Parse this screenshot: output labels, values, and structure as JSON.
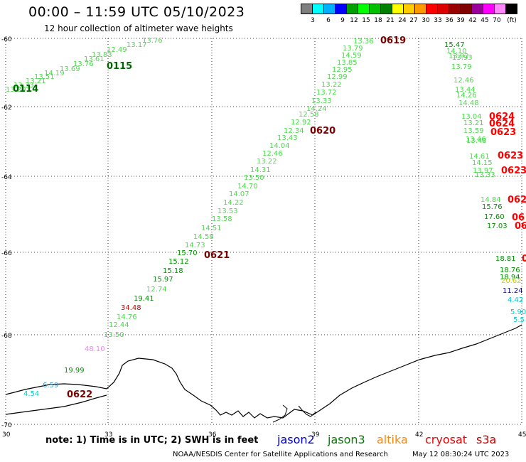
{
  "header": {
    "title": "00:00 – 11:59 UTC 05/10/2023",
    "subtitle": "12 hour collection of altimeter wave heights"
  },
  "color_scale": {
    "unit": "(ft)",
    "colors": [
      "#7f7f7f",
      "#00ffff",
      "#00b0ff",
      "#0000ff",
      "#00a000",
      "#00ff00",
      "#00c000",
      "#008000",
      "#ffff00",
      "#ffcc00",
      "#ff9900",
      "#ff0000",
      "#dd0000",
      "#990000",
      "#800000",
      "#990099",
      "#ff00ff",
      "#ff88ff",
      "#000000"
    ],
    "labels": [
      "3",
      "6",
      "9",
      "12",
      "15",
      "18",
      "21",
      "24",
      "27",
      "30",
      "33",
      "36",
      "39",
      "42",
      "45",
      "70"
    ]
  },
  "axes": {
    "lat_labels": [
      "60",
      "62",
      "64",
      "66",
      "68",
      "70"
    ],
    "lon_labels": [
      "30",
      "33",
      "36",
      "39",
      "42",
      "45"
    ]
  },
  "time_labels": [
    {
      "text": "0114",
      "color": "#006400"
    },
    {
      "text": "0115",
      "color": "#006400"
    },
    {
      "text": "0619",
      "color": "#7a0000"
    },
    {
      "text": "0620",
      "color": "#7a0000"
    },
    {
      "text": "0621",
      "color": "#7a0000"
    },
    {
      "text": "0622",
      "color": "#7a0000"
    },
    {
      "text": "0624",
      "color": "#ff0000"
    },
    {
      "text": "0624",
      "color": "#ff0000"
    },
    {
      "text": "0623",
      "color": "#ff0000"
    },
    {
      "text": "0623",
      "color": "#ff0000"
    },
    {
      "text": "0623",
      "color": "#ff0000"
    },
    {
      "text": "062",
      "color": "#ff0000"
    },
    {
      "text": "06",
      "color": "#ff0000"
    },
    {
      "text": "06",
      "color": "#ff0000"
    },
    {
      "text": "0",
      "color": "#ff0000"
    }
  ],
  "wave_heights": [
    {
      "t": "13.29",
      "c": "#4cd94c"
    },
    {
      "t": "13.33",
      "c": "#4cd94c"
    },
    {
      "t": "13.21",
      "c": "#4cd94c"
    },
    {
      "t": "13.51",
      "c": "#4cd94c"
    },
    {
      "t": "14.19",
      "c": "#4cd94c"
    },
    {
      "t": "13.69",
      "c": "#4cd94c"
    },
    {
      "t": "13.76",
      "c": "#4cd94c"
    },
    {
      "t": "13.61",
      "c": "#4cd94c"
    },
    {
      "t": "13.83",
      "c": "#4cd94c"
    },
    {
      "t": "12.49",
      "c": "#4cd94c"
    },
    {
      "t": "13.17",
      "c": "#4cd94c"
    },
    {
      "t": "13.76",
      "c": "#4cd94c"
    },
    {
      "t": "13.36",
      "c": "#4cd94c"
    },
    {
      "t": "13.79",
      "c": "#4cd94c"
    },
    {
      "t": "14.59",
      "c": "#4cd94c"
    },
    {
      "t": "13.85",
      "c": "#4cd94c"
    },
    {
      "t": "12.95",
      "c": "#4cd94c"
    },
    {
      "t": "12.99",
      "c": "#4cd94c"
    },
    {
      "t": "13.22",
      "c": "#4cd94c"
    },
    {
      "t": "13.72",
      "c": "#4cd94c"
    },
    {
      "t": "13.33",
      "c": "#4cd94c"
    },
    {
      "t": "14.24",
      "c": "#4cd94c"
    },
    {
      "t": "12.58",
      "c": "#4cd94c"
    },
    {
      "t": "12.92",
      "c": "#4cd94c"
    },
    {
      "t": "12.34",
      "c": "#4cd94c"
    },
    {
      "t": "13.43",
      "c": "#4cd94c"
    },
    {
      "t": "14.04",
      "c": "#4cd94c"
    },
    {
      "t": "12.46",
      "c": "#4cd94c"
    },
    {
      "t": "13.22",
      "c": "#4cd94c"
    },
    {
      "t": "14.31",
      "c": "#4cd94c"
    },
    {
      "t": "13.50",
      "c": "#4cd94c"
    },
    {
      "t": "14.70",
      "c": "#4cd94c"
    },
    {
      "t": "14.07",
      "c": "#4cd94c"
    },
    {
      "t": "14.22",
      "c": "#4cd94c"
    },
    {
      "t": "13.53",
      "c": "#4cd94c"
    },
    {
      "t": "13.58",
      "c": "#4cd94c"
    },
    {
      "t": "14.51",
      "c": "#4cd94c"
    },
    {
      "t": "14.58",
      "c": "#4cd94c"
    },
    {
      "t": "14.73",
      "c": "#4cd94c"
    },
    {
      "t": "15.70",
      "c": "#009000"
    },
    {
      "t": "15.12",
      "c": "#009000"
    },
    {
      "t": "15.18",
      "c": "#009000"
    },
    {
      "t": "15.97",
      "c": "#009000"
    },
    {
      "t": "12.74",
      "c": "#4cd94c"
    },
    {
      "t": "19.41",
      "c": "#009000"
    },
    {
      "t": "34.48",
      "c": "#cc0000"
    },
    {
      "t": "14.76",
      "c": "#4cd94c"
    },
    {
      "t": "12.44",
      "c": "#4cd94c"
    },
    {
      "t": "13.50",
      "c": "#4cd94c"
    },
    {
      "t": "48.10",
      "c": "#ee88ee"
    },
    {
      "t": "19.99",
      "c": "#009000"
    },
    {
      "t": "6.59",
      "c": "#4499cc"
    },
    {
      "t": "4.54",
      "c": "#00cccc"
    },
    {
      "t": "15.47",
      "c": "#009000"
    },
    {
      "t": "14.10",
      "c": "#4cd94c"
    },
    {
      "t": "13.92",
      "c": "#4cd94c"
    },
    {
      "t": "13.93",
      "c": "#4cd94c"
    },
    {
      "t": "13.79",
      "c": "#4cd94c"
    },
    {
      "t": "12.46",
      "c": "#4cd94c"
    },
    {
      "t": "13.44",
      "c": "#4cd94c"
    },
    {
      "t": "14.26",
      "c": "#4cd94c"
    },
    {
      "t": "14.48",
      "c": "#4cd94c"
    },
    {
      "t": "13.04",
      "c": "#4cd94c"
    },
    {
      "t": "13.21",
      "c": "#4cd94c"
    },
    {
      "t": "13.59",
      "c": "#4cd94c"
    },
    {
      "t": "13.46",
      "c": "#4cd94c"
    },
    {
      "t": "13.48",
      "c": "#4cd94c"
    },
    {
      "t": "14.61",
      "c": "#4cd94c"
    },
    {
      "t": "14.15",
      "c": "#4cd94c"
    },
    {
      "t": "13.97",
      "c": "#4cd94c"
    },
    {
      "t": "13.33",
      "c": "#4cd94c"
    },
    {
      "t": "14.84",
      "c": "#4cd94c"
    },
    {
      "t": "15.76",
      "c": "#009000"
    },
    {
      "t": "17.60",
      "c": "#009000"
    },
    {
      "t": "17.03",
      "c": "#009000"
    },
    {
      "t": "18.81",
      "c": "#009000"
    },
    {
      "t": "18.76",
      "c": "#009000"
    },
    {
      "t": "18.94",
      "c": "#009000"
    },
    {
      "t": "20.62",
      "c": "#cccc00"
    },
    {
      "t": "11.24",
      "c": "#0000cc"
    },
    {
      "t": "4.42",
      "c": "#00cccc"
    },
    {
      "t": "5.90",
      "c": "#00cccc"
    },
    {
      "t": "5.5",
      "c": "#00cccc"
    }
  ],
  "footer": {
    "note": "note:  1) Time is in UTC;  2) SWH is in feet",
    "satellites": [
      {
        "name": "jason2",
        "color": "#0000cc"
      },
      {
        "name": "jason3",
        "color": "#008000"
      },
      {
        "name": "altika",
        "color": "#ff8800"
      },
      {
        "name": "cryosat",
        "color": "#ee0000"
      },
      {
        "name": "s3a",
        "color": "#cc0000"
      }
    ],
    "credit": "NOAA/NESDIS Center for Satellite Applications and Research",
    "timestamp": "May 12 08:30:24 UTC 2023"
  }
}
